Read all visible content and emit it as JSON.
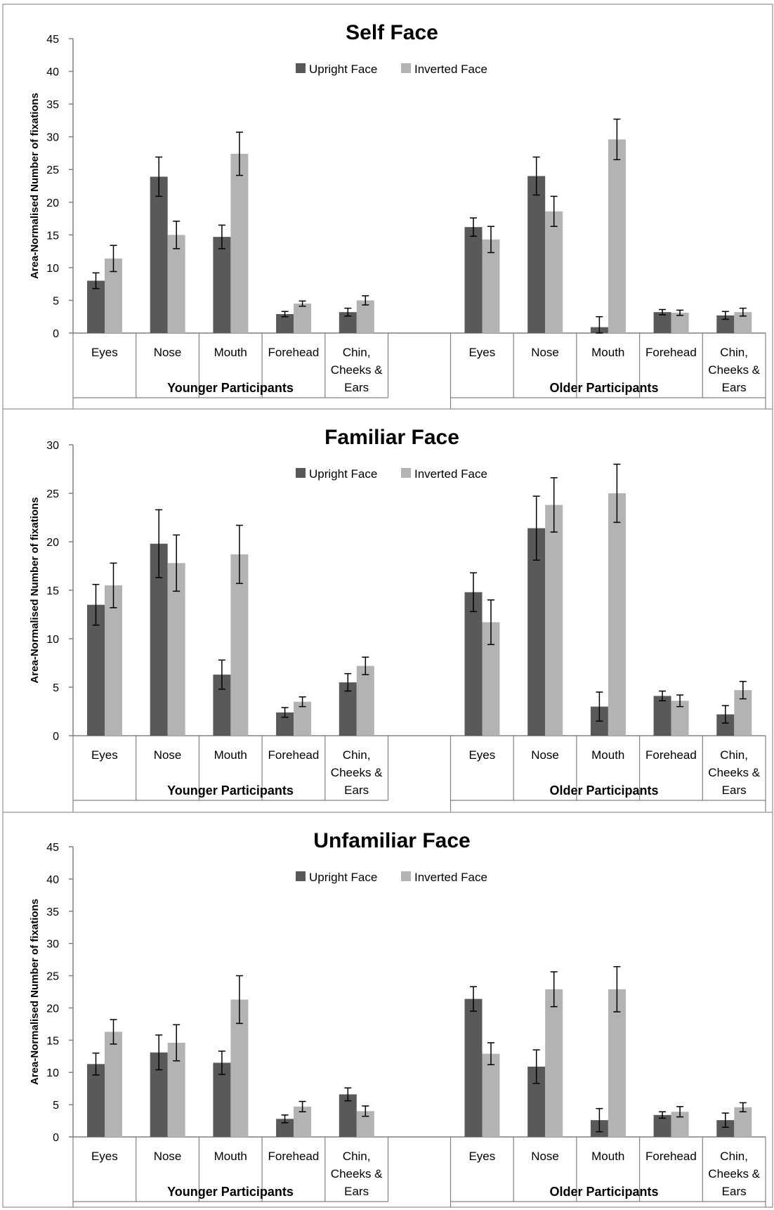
{
  "colors": {
    "upright": "#595959",
    "inverted": "#b3b3b3",
    "axis": "#808080",
    "border": "#a6a6a6"
  },
  "chart_data": [
    {
      "type": "bar",
      "title": "Self Face",
      "ylabel": "Area-Normalised Number of fixations",
      "ylim": [
        0,
        45
      ],
      "yticks": [
        0,
        5,
        10,
        15,
        20,
        25,
        30,
        35,
        40,
        45
      ],
      "legend": "top-center",
      "groups": [
        {
          "label": "Younger Participants",
          "categories": [
            "Eyes",
            "Nose",
            "Mouth",
            "Forehead",
            "Chin, Cheeks & Ears"
          ]
        },
        {
          "label": "Older Participants",
          "categories": [
            "Eyes",
            "Nose",
            "Mouth",
            "Forehead",
            "Chin, Cheeks & Ears"
          ]
        }
      ],
      "series": [
        {
          "name": "Upright Face",
          "values": [
            8.0,
            23.9,
            14.7,
            2.9,
            3.2,
            16.2,
            24.0,
            0.9,
            3.2,
            2.7
          ],
          "errors": [
            1.2,
            3.0,
            1.8,
            0.4,
            0.6,
            1.4,
            2.9,
            1.6,
            0.4,
            0.6
          ]
        },
        {
          "name": "Inverted Face",
          "values": [
            11.4,
            15.0,
            27.4,
            4.5,
            5.0,
            14.3,
            18.6,
            29.6,
            3.1,
            3.2
          ],
          "errors": [
            2.0,
            2.1,
            3.3,
            0.4,
            0.7,
            2.0,
            2.3,
            3.1,
            0.4,
            0.6
          ]
        }
      ]
    },
    {
      "type": "bar",
      "title": "Familiar Face",
      "ylabel": "Area-Normalised Number of fixations",
      "ylim": [
        0,
        30
      ],
      "yticks": [
        0,
        5,
        10,
        15,
        20,
        25,
        30
      ],
      "legend": "top-center",
      "groups": [
        {
          "label": "Younger Participants",
          "categories": [
            "Eyes",
            "Nose",
            "Mouth",
            "Forehead",
            "Chin, Cheeks & Ears"
          ]
        },
        {
          "label": "Older Participants",
          "categories": [
            "Eyes",
            "Nose",
            "Mouth",
            "Forehead",
            "Chin, Cheeks & Ears"
          ]
        }
      ],
      "series": [
        {
          "name": "Upright Face",
          "values": [
            13.5,
            19.8,
            6.3,
            2.4,
            5.5,
            14.8,
            21.4,
            3.0,
            4.1,
            2.2
          ],
          "errors": [
            2.1,
            3.5,
            1.5,
            0.5,
            0.9,
            2.0,
            3.3,
            1.5,
            0.5,
            0.9
          ]
        },
        {
          "name": "Inverted Face",
          "values": [
            15.5,
            17.8,
            18.7,
            3.5,
            7.2,
            11.7,
            23.8,
            25.0,
            3.6,
            4.7
          ],
          "errors": [
            2.3,
            2.9,
            3.0,
            0.5,
            0.9,
            2.3,
            2.8,
            3.0,
            0.6,
            0.9
          ]
        }
      ]
    },
    {
      "type": "bar",
      "title": "Unfamiliar Face",
      "ylabel": "Area-Normalised Number of fixations",
      "ylim": [
        0,
        45
      ],
      "yticks": [
        0,
        5,
        10,
        15,
        20,
        25,
        30,
        35,
        40,
        45
      ],
      "legend": "top-center",
      "groups": [
        {
          "label": "Younger Participants",
          "categories": [
            "Eyes",
            "Nose",
            "Mouth",
            "Forehead",
            "Chin, Cheeks & Ears"
          ]
        },
        {
          "label": "Older Participants",
          "categories": [
            "Eyes",
            "Nose",
            "Mouth",
            "Forehead",
            "Chin, Cheeks & Ears"
          ]
        }
      ],
      "series": [
        {
          "name": "Upright Face",
          "values": [
            11.3,
            13.1,
            11.5,
            2.8,
            6.6,
            21.4,
            10.9,
            2.6,
            3.4,
            2.6
          ],
          "errors": [
            1.7,
            2.7,
            1.8,
            0.6,
            1.0,
            1.9,
            2.6,
            1.8,
            0.5,
            1.1
          ]
        },
        {
          "name": "Inverted Face",
          "values": [
            16.3,
            14.6,
            21.3,
            4.7,
            4.0,
            12.9,
            22.9,
            22.9,
            3.9,
            4.6
          ],
          "errors": [
            1.9,
            2.8,
            3.7,
            0.8,
            0.8,
            1.7,
            2.7,
            3.5,
            0.8,
            0.7
          ]
        }
      ]
    }
  ]
}
